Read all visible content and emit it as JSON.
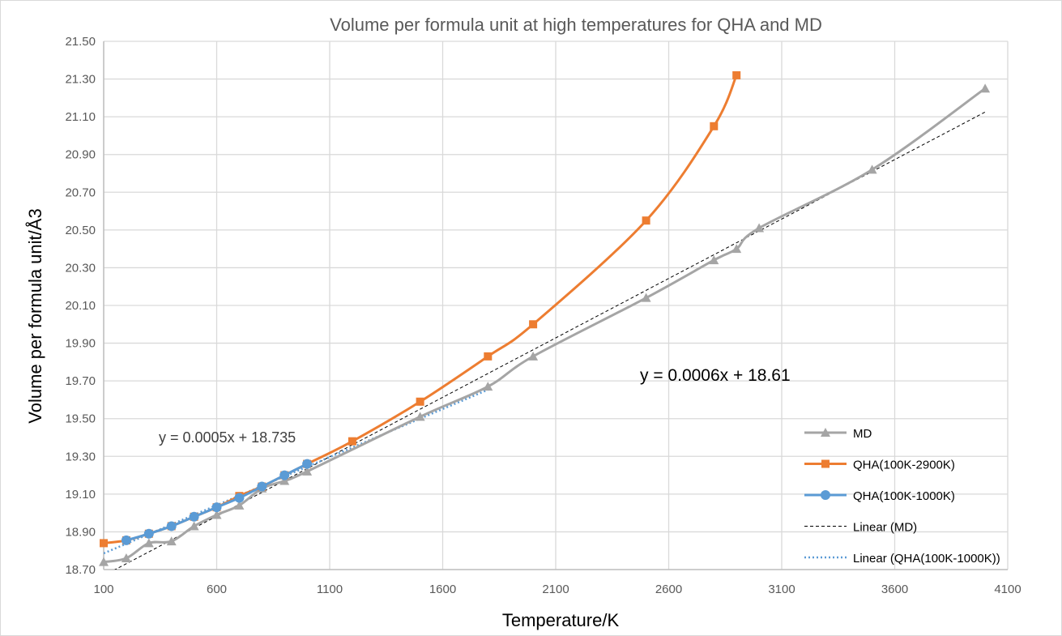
{
  "chart_data": {
    "type": "line",
    "title": "Volume per formula unit at high temperatures for QHA and MD",
    "xlabel": "Temperature/K",
    "ylabel": "Volume per formula unit/Å3",
    "xlim": [
      100,
      4100
    ],
    "ylim": [
      18.7,
      21.5
    ],
    "xticks": [
      "100",
      "600",
      "1100",
      "1600",
      "2100",
      "2600",
      "3100",
      "3600",
      "4100"
    ],
    "yticks": [
      "18.70",
      "18.90",
      "19.10",
      "19.30",
      "19.50",
      "19.70",
      "19.90",
      "20.10",
      "20.30",
      "20.50",
      "20.70",
      "20.90",
      "21.10",
      "21.30",
      "21.50"
    ],
    "grid": true,
    "legend_position": "right",
    "series": [
      {
        "name": "MD",
        "color": "#a5a5a5",
        "marker": "triangle",
        "x": [
          100,
          200,
          300,
          400,
          500,
          600,
          700,
          800,
          900,
          1000,
          1500,
          1800,
          2000,
          2500,
          2800,
          2900,
          3000,
          3500,
          4000
        ],
        "y": [
          18.74,
          18.76,
          18.84,
          18.85,
          18.93,
          18.99,
          19.04,
          19.13,
          19.17,
          19.22,
          19.51,
          19.67,
          19.83,
          20.14,
          20.34,
          20.4,
          20.51,
          20.82,
          21.25
        ]
      },
      {
        "name": "QHA(100K-2900K)",
        "color": "#ed7d31",
        "marker": "square",
        "x": [
          100,
          200,
          300,
          400,
          500,
          600,
          700,
          800,
          900,
          1000,
          1200,
          1500,
          1800,
          2000,
          2500,
          2800,
          2900
        ],
        "y": [
          18.84,
          18.855,
          18.89,
          18.93,
          18.98,
          19.03,
          19.09,
          19.14,
          19.2,
          19.26,
          19.38,
          19.59,
          19.83,
          20.0,
          20.55,
          21.05,
          21.32
        ]
      },
      {
        "name": "QHA(100K-1000K)",
        "color": "#5b9bd5",
        "marker": "circle",
        "x": [
          200,
          300,
          400,
          500,
          600,
          700,
          800,
          900,
          1000
        ],
        "y": [
          18.855,
          18.89,
          18.93,
          18.98,
          19.03,
          19.08,
          19.14,
          19.2,
          19.26
        ]
      }
    ],
    "trendlines": [
      {
        "name": "Linear (MD)",
        "color": "#000000",
        "style": "dashed",
        "slope": 0.00063,
        "intercept": 18.605,
        "x_range": [
          100,
          4000
        ],
        "equation": "y = 0.0006x + 18.61"
      },
      {
        "name": "Linear (QHA(100K-1000K))",
        "color": "#5b9bd5",
        "style": "dotted",
        "slope": 0.00051,
        "intercept": 18.735,
        "x_range": [
          100,
          1800
        ],
        "equation": "y = 0.0005x + 18.735"
      }
    ]
  }
}
